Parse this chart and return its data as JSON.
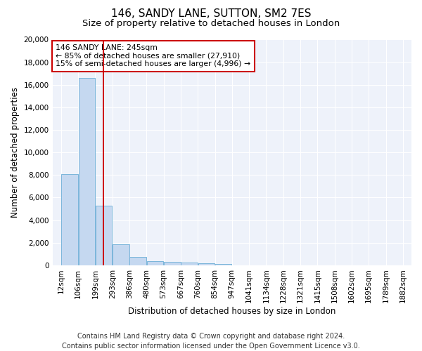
{
  "title": "146, SANDY LANE, SUTTON, SM2 7ES",
  "subtitle": "Size of property relative to detached houses in London",
  "xlabel": "Distribution of detached houses by size in London",
  "ylabel": "Number of detached properties",
  "bar_color": "#c5d8f0",
  "bar_edge_color": "#6baed6",
  "vline_color": "#cc0000",
  "vline_x_bin": 2,
  "annotation_text": "146 SANDY LANE: 245sqm\n← 85% of detached houses are smaller (27,910)\n15% of semi-detached houses are larger (4,996) →",
  "annotation_box_color": "#cc0000",
  "bin_edges": [
    12,
    106,
    199,
    293,
    386,
    480,
    573,
    667,
    760,
    854,
    947,
    1041,
    1134,
    1228,
    1321,
    1415,
    1508,
    1602,
    1695,
    1789,
    1882
  ],
  "bin_labels": [
    "12sqm",
    "106sqm",
    "199sqm",
    "293sqm",
    "386sqm",
    "480sqm",
    "573sqm",
    "667sqm",
    "760sqm",
    "854sqm",
    "947sqm",
    "1041sqm",
    "1134sqm",
    "1228sqm",
    "1321sqm",
    "1415sqm",
    "1508sqm",
    "1602sqm",
    "1695sqm",
    "1789sqm",
    "1882sqm"
  ],
  "counts": [
    8100,
    16600,
    5300,
    1850,
    750,
    380,
    280,
    220,
    175,
    130,
    0,
    0,
    0,
    0,
    0,
    0,
    0,
    0,
    0,
    0
  ],
  "ylim": [
    0,
    20000
  ],
  "yticks": [
    0,
    2000,
    4000,
    6000,
    8000,
    10000,
    12000,
    14000,
    16000,
    18000,
    20000
  ],
  "background_color": "#eef2fa",
  "footer": "Contains HM Land Registry data © Crown copyright and database right 2024.\nContains public sector information licensed under the Open Government Licence v3.0.",
  "title_fontsize": 11,
  "subtitle_fontsize": 9.5,
  "axis_label_fontsize": 8.5,
  "tick_fontsize": 7.5,
  "footer_fontsize": 7
}
